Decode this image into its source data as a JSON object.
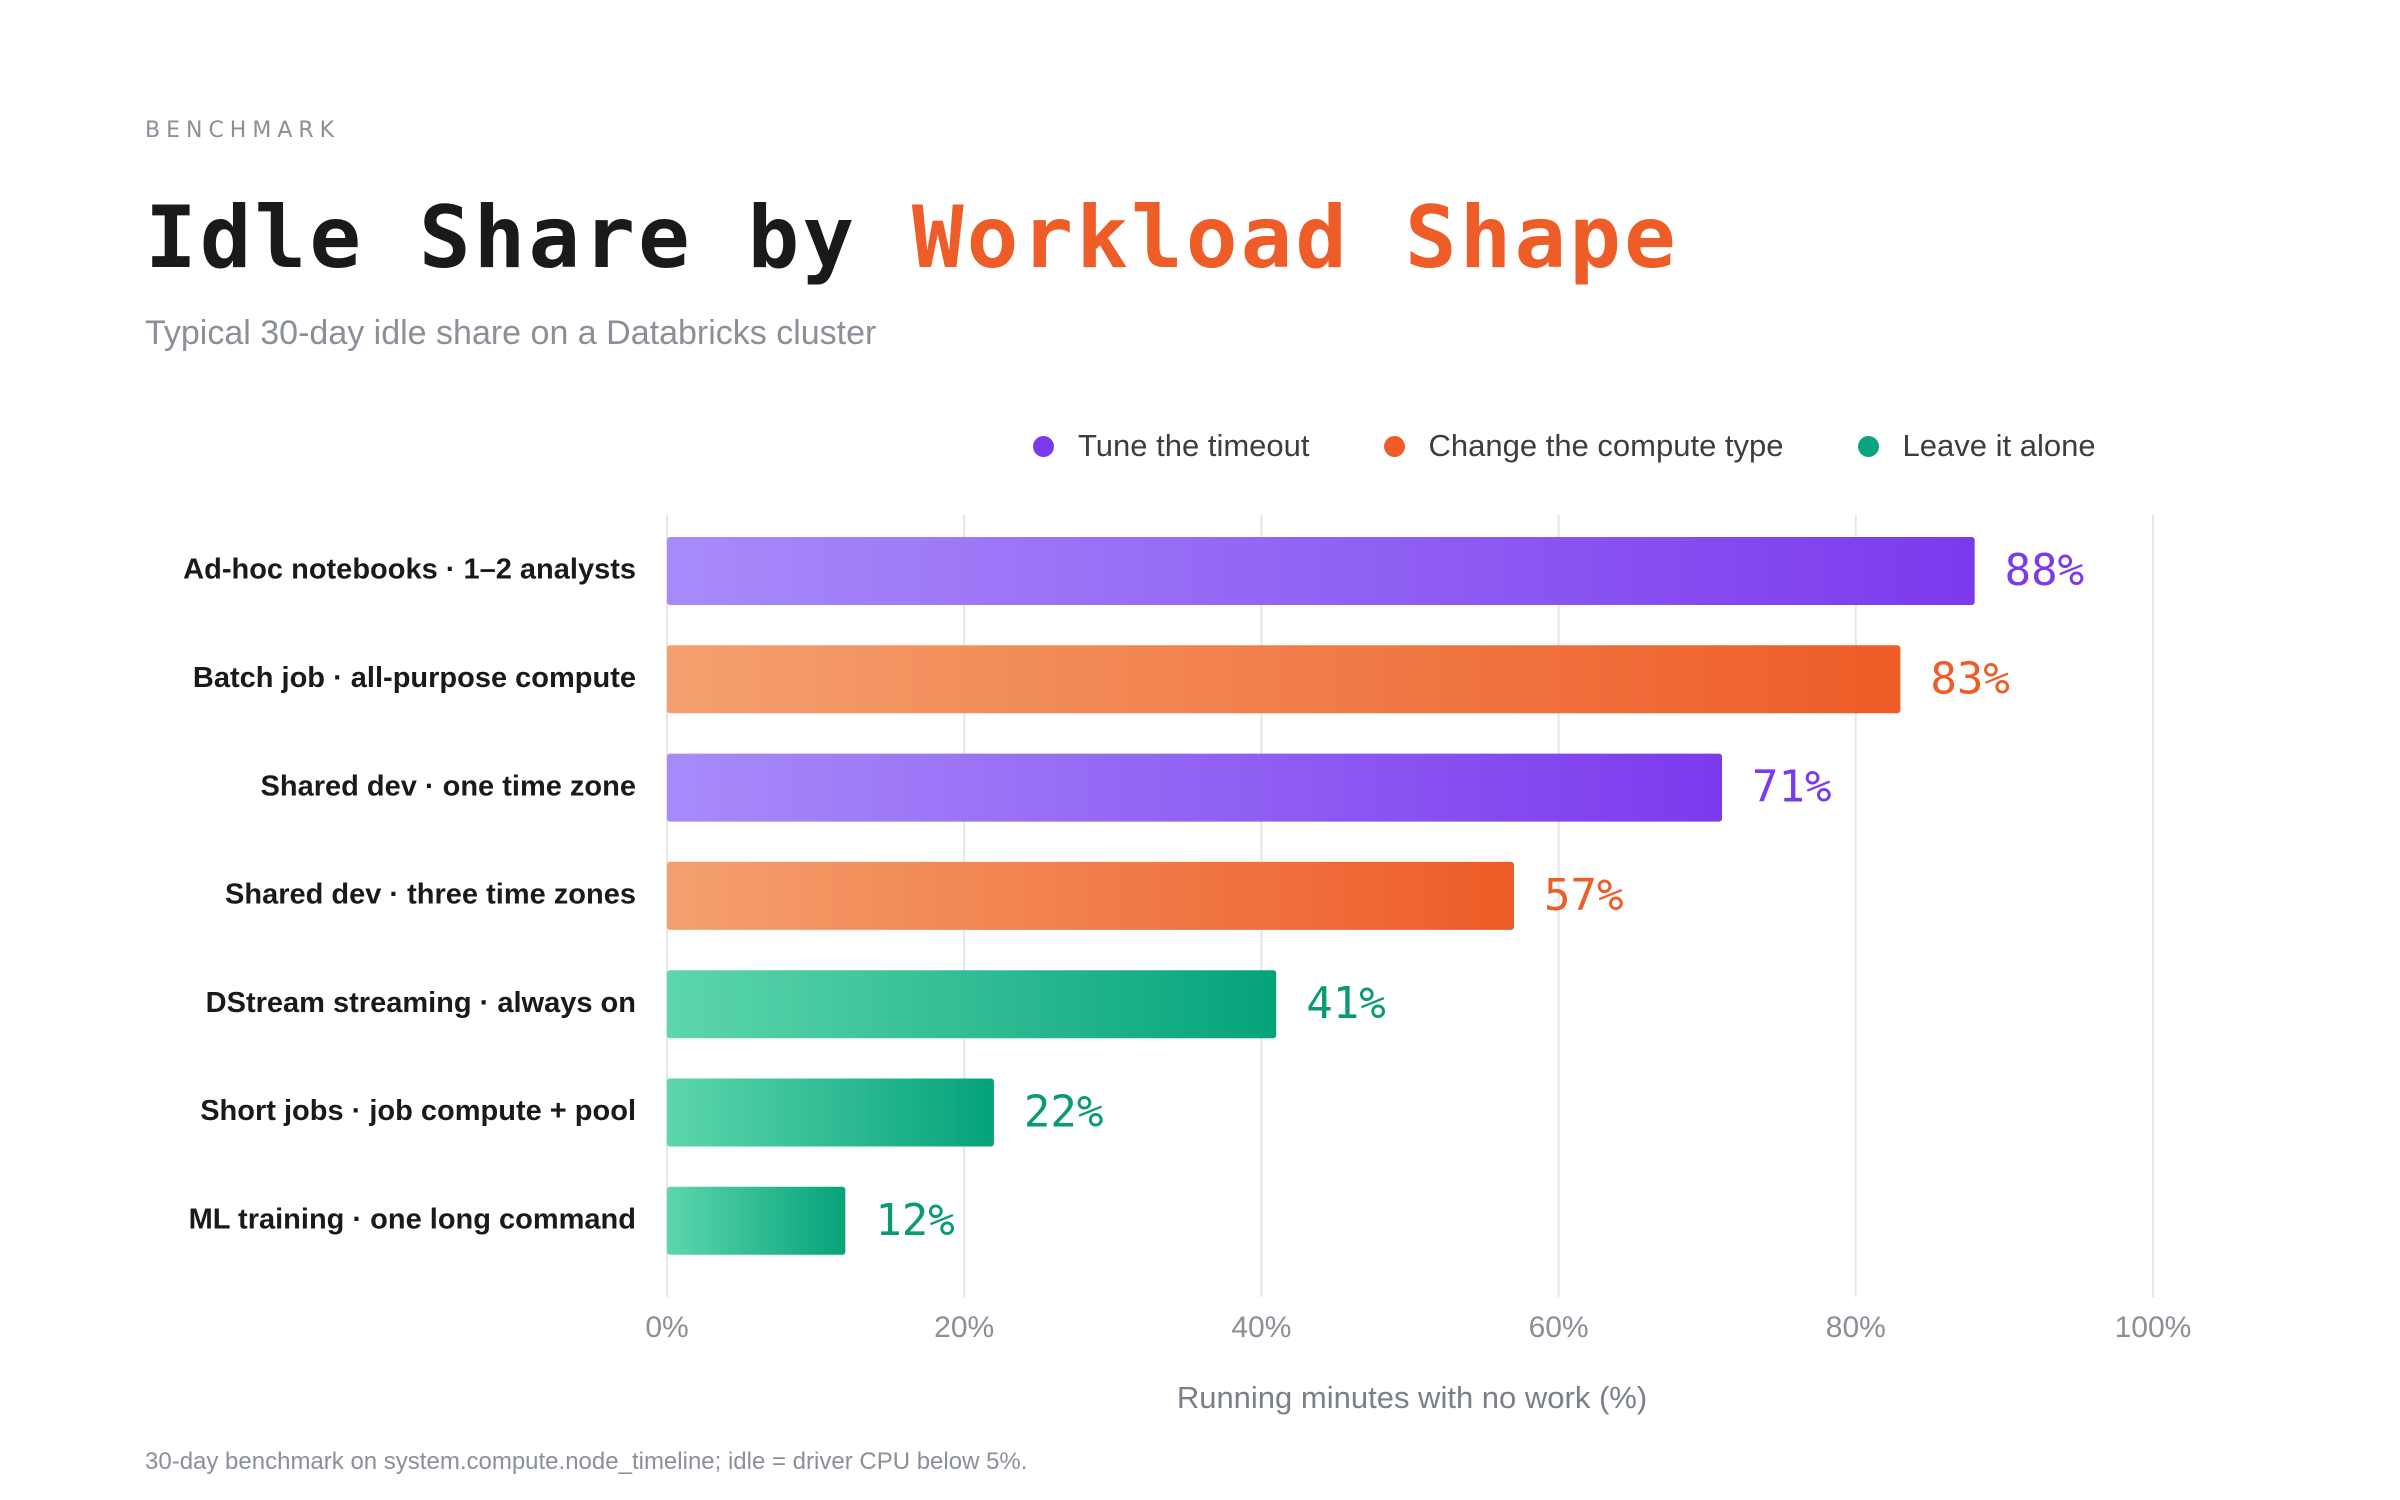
{
  "header": {
    "eyebrow": "BENCHMARK",
    "title_part1": "Idle Share by ",
    "title_part2": "Workload Shape",
    "subtitle": "Typical 30-day idle share on a Databricks cluster"
  },
  "legend": [
    {
      "label": "Tune the timeout",
      "color": "#7c3aed"
    },
    {
      "label": "Change the compute type",
      "color": "#ee5c27"
    },
    {
      "label": "Leave it alone",
      "color": "#0ea37f"
    }
  ],
  "colors": {
    "purple": {
      "start": "#a78bfa",
      "end": "#7c3aed",
      "label": "#7c3aed"
    },
    "orange": {
      "start": "#f4a06e",
      "end": "#ee5c27",
      "label": "#ee5c27"
    },
    "green": {
      "start": "#5dd6ad",
      "end": "#05a37b",
      "label": "#0a9a76"
    },
    "grid": "#e6e6e6",
    "axis_text": "#8a8f98",
    "category_text": "#1a1a1a"
  },
  "chart_data": {
    "type": "bar",
    "orientation": "horizontal",
    "categories": [
      "Ad-hoc notebooks · 1–2 analysts",
      "Batch job · all-purpose compute",
      "Shared dev · one time zone",
      "Shared dev · three time zones",
      "DStream streaming · always on",
      "Short jobs · job compute + pool",
      "ML training · one long command"
    ],
    "values": [
      88,
      83,
      71,
      57,
      41,
      22,
      12
    ],
    "value_labels": [
      "88%",
      "83%",
      "71%",
      "57%",
      "41%",
      "22%",
      "12%"
    ],
    "groups": [
      "Tune the timeout",
      "Change the compute type",
      "Tune the timeout",
      "Change the compute type",
      "Leave it alone",
      "Leave it alone",
      "Leave it alone"
    ],
    "bar_colors": [
      "purple",
      "orange",
      "purple",
      "orange",
      "green",
      "green",
      "green"
    ],
    "xlim": [
      0,
      100
    ],
    "xticks": [
      0,
      20,
      40,
      60,
      80,
      100
    ],
    "xtick_labels": [
      "0%",
      "20%",
      "40%",
      "60%",
      "80%",
      "100%"
    ],
    "xlabel": "Running minutes with no work (%)",
    "ylabel": "",
    "grid": "vertical",
    "legend_position": "top-right"
  },
  "footnote": "30-day benchmark on system.compute.node_timeline; idle = driver CPU below 5%."
}
